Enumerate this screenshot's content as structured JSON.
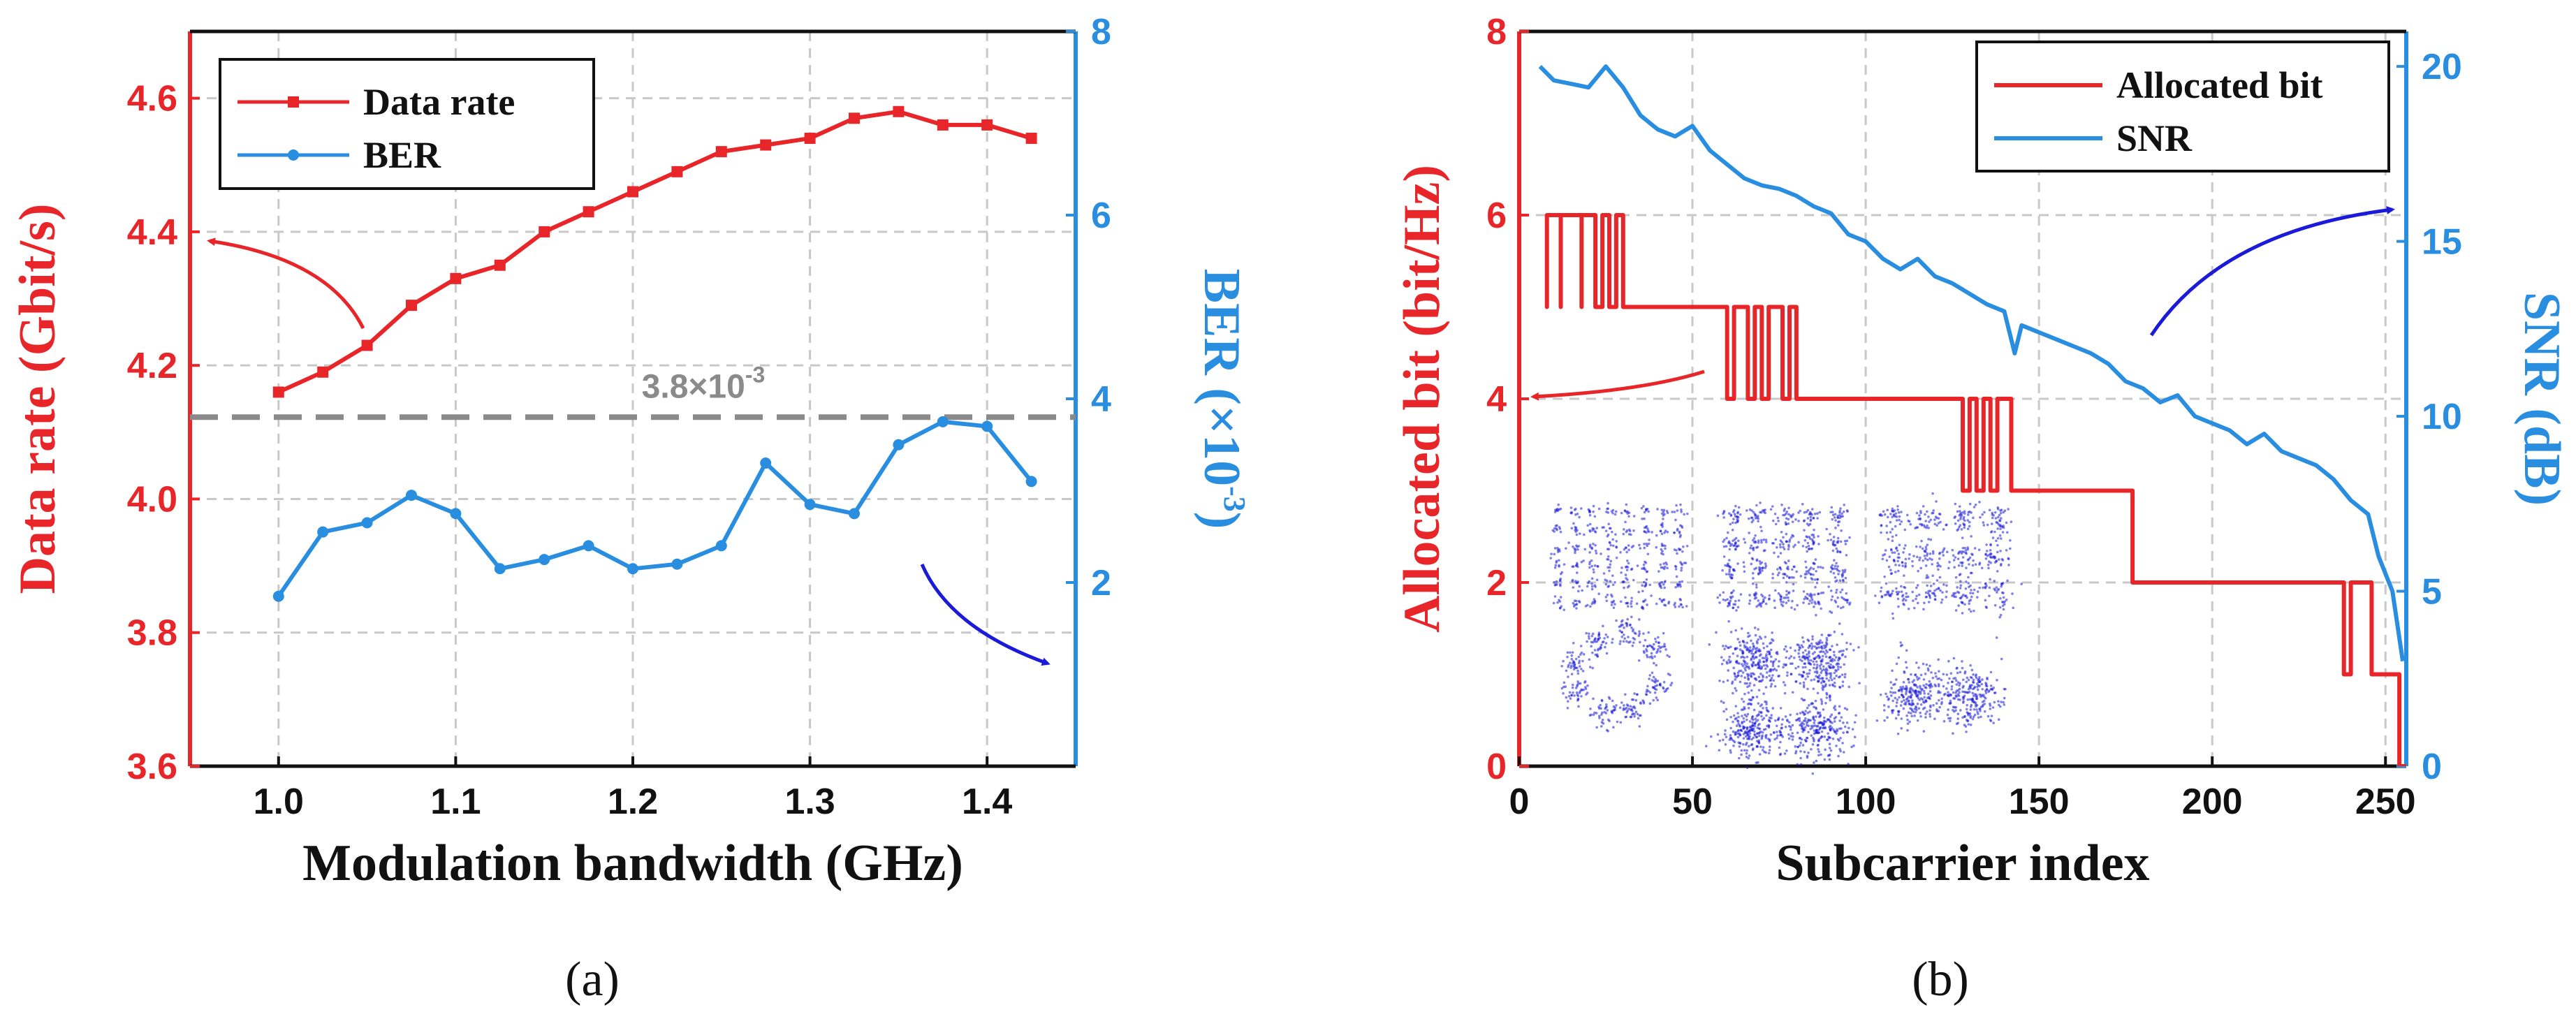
{
  "chart_data": [
    {
      "panel": "(a)",
      "type": "line",
      "xlabel": "Modulation bandwidth (GHz)",
      "ylabel_left": "Data rate (Gbit/s)",
      "ylabel_right_base": "BER (×10",
      "ylabel_right_exp": "-3",
      "ylabel_right_close": ")",
      "xlim": [
        0.95,
        1.45
      ],
      "ylim_left": [
        3.6,
        4.7
      ],
      "ylim_right": [
        0,
        8
      ],
      "xticks": [
        "1.0",
        "1.1",
        "1.2",
        "1.3",
        "1.4"
      ],
      "xtick_values": [
        1.0,
        1.1,
        1.2,
        1.3,
        1.4
      ],
      "yticks_left": [
        "3.6",
        "3.8",
        "4.0",
        "4.2",
        "4.4",
        "4.6"
      ],
      "ytick_values_left": [
        3.6,
        3.8,
        4.0,
        4.2,
        4.4,
        4.6
      ],
      "yticks_right": [
        "2",
        "4",
        "6",
        "8"
      ],
      "ytick_values_right": [
        2,
        4,
        6,
        8
      ],
      "grid": true,
      "threshold": {
        "value": 3.8,
        "label": "3.8×10",
        "label_exp": "-3"
      },
      "series": [
        {
          "name": "Data rate",
          "axis": "left",
          "color": "#e8262a",
          "marker": "square",
          "x": [
            1.0,
            1.025,
            1.05,
            1.075,
            1.1,
            1.125,
            1.15,
            1.175,
            1.2,
            1.225,
            1.25,
            1.275,
            1.3,
            1.325,
            1.35,
            1.375,
            1.4,
            1.425
          ],
          "values": [
            4.16,
            4.19,
            4.23,
            4.29,
            4.33,
            4.35,
            4.4,
            4.43,
            4.46,
            4.49,
            4.52,
            4.53,
            4.54,
            4.57,
            4.58,
            4.56,
            4.56,
            4.54
          ]
        },
        {
          "name": "BER",
          "axis": "right",
          "color": "#2a8ee0",
          "marker": "circle",
          "x": [
            1.0,
            1.025,
            1.05,
            1.075,
            1.1,
            1.125,
            1.15,
            1.175,
            1.2,
            1.225,
            1.25,
            1.275,
            1.3,
            1.325,
            1.35,
            1.375,
            1.4,
            1.425
          ],
          "values": [
            1.85,
            2.55,
            2.65,
            2.95,
            2.75,
            2.15,
            2.25,
            2.4,
            2.15,
            2.2,
            2.4,
            3.3,
            2.85,
            2.75,
            3.5,
            3.75,
            3.7,
            3.1
          ]
        }
      ]
    },
    {
      "panel": "(b)",
      "type": "line",
      "xlabel": "Subcarrier index",
      "ylabel_left": "Allocated bit (bit/Hz)",
      "ylabel_right": "SNR (dB)",
      "xlim": [
        0,
        256
      ],
      "ylim_left": [
        0,
        8
      ],
      "ylim_right": [
        0,
        21
      ],
      "xticks": [
        "0",
        "50",
        "100",
        "150",
        "200",
        "250"
      ],
      "xtick_values": [
        0,
        50,
        100,
        150,
        200,
        250
      ],
      "yticks_left": [
        "0",
        "2",
        "4",
        "6",
        "8"
      ],
      "ytick_values_left": [
        0,
        2,
        4,
        6,
        8
      ],
      "yticks_right": [
        "0",
        "5",
        "10",
        "15",
        "20"
      ],
      "ytick_values_right": [
        0,
        5,
        10,
        15,
        20
      ],
      "grid": true,
      "series": [
        {
          "name": "Allocated bit",
          "axis": "left",
          "color": "#e8262a",
          "step": true,
          "x": [
            8,
            8,
            8,
            12,
            12,
            12,
            18,
            18,
            18,
            22,
            22,
            24,
            24,
            26,
            26,
            28,
            28,
            30,
            30,
            60,
            60,
            62,
            62,
            66,
            66,
            68,
            68,
            70,
            70,
            72,
            72,
            76,
            76,
            78,
            78,
            80,
            80,
            128,
            128,
            130,
            130,
            132,
            132,
            134,
            134,
            136,
            136,
            138,
            138,
            142,
            142,
            177,
            177,
            238,
            238,
            240,
            240,
            246,
            246,
            254,
            254,
            256
          ],
          "values": [
            6,
            5,
            6,
            6,
            5,
            6,
            6,
            5,
            6,
            6,
            5,
            5,
            6,
            6,
            5,
            5,
            6,
            6,
            5,
            5,
            4,
            4,
            5,
            5,
            4,
            4,
            5,
            5,
            4,
            4,
            5,
            5,
            4,
            4,
            5,
            5,
            4,
            4,
            3,
            3,
            4,
            4,
            3,
            3,
            4,
            4,
            3,
            3,
            4,
            4,
            3,
            3,
            2,
            2,
            1,
            1,
            2,
            2,
            1,
            1,
            0,
            0
          ]
        },
        {
          "name": "SNR",
          "axis": "right",
          "color": "#2a8ee0",
          "x": [
            6,
            10,
            15,
            20,
            25,
            30,
            35,
            40,
            45,
            50,
            55,
            60,
            65,
            70,
            75,
            80,
            85,
            90,
            95,
            100,
            105,
            110,
            115,
            120,
            125,
            130,
            135,
            140,
            143,
            145,
            150,
            155,
            160,
            165,
            170,
            175,
            180,
            185,
            190,
            195,
            200,
            205,
            210,
            215,
            220,
            225,
            230,
            235,
            240,
            245,
            248,
            252,
            255
          ],
          "values": [
            20.0,
            19.6,
            19.5,
            19.4,
            20.0,
            19.4,
            18.6,
            18.2,
            18.0,
            18.3,
            17.6,
            17.2,
            16.8,
            16.6,
            16.5,
            16.3,
            16.0,
            15.8,
            15.2,
            15.0,
            14.5,
            14.2,
            14.5,
            14.0,
            13.8,
            13.5,
            13.2,
            13.0,
            11.8,
            12.6,
            12.4,
            12.2,
            12.0,
            11.8,
            11.5,
            11.0,
            10.8,
            10.4,
            10.6,
            10.0,
            9.8,
            9.6,
            9.2,
            9.5,
            9.0,
            8.8,
            8.6,
            8.2,
            7.6,
            7.2,
            6.0,
            5.0,
            3.0
          ]
        }
      ]
    }
  ],
  "legend_a": {
    "items": [
      "Data rate",
      "BER"
    ]
  },
  "legend_b": {
    "items": [
      "Allocated bit",
      "SNR"
    ]
  },
  "panel_labels": {
    "a": "(a)",
    "b": "(b)"
  }
}
